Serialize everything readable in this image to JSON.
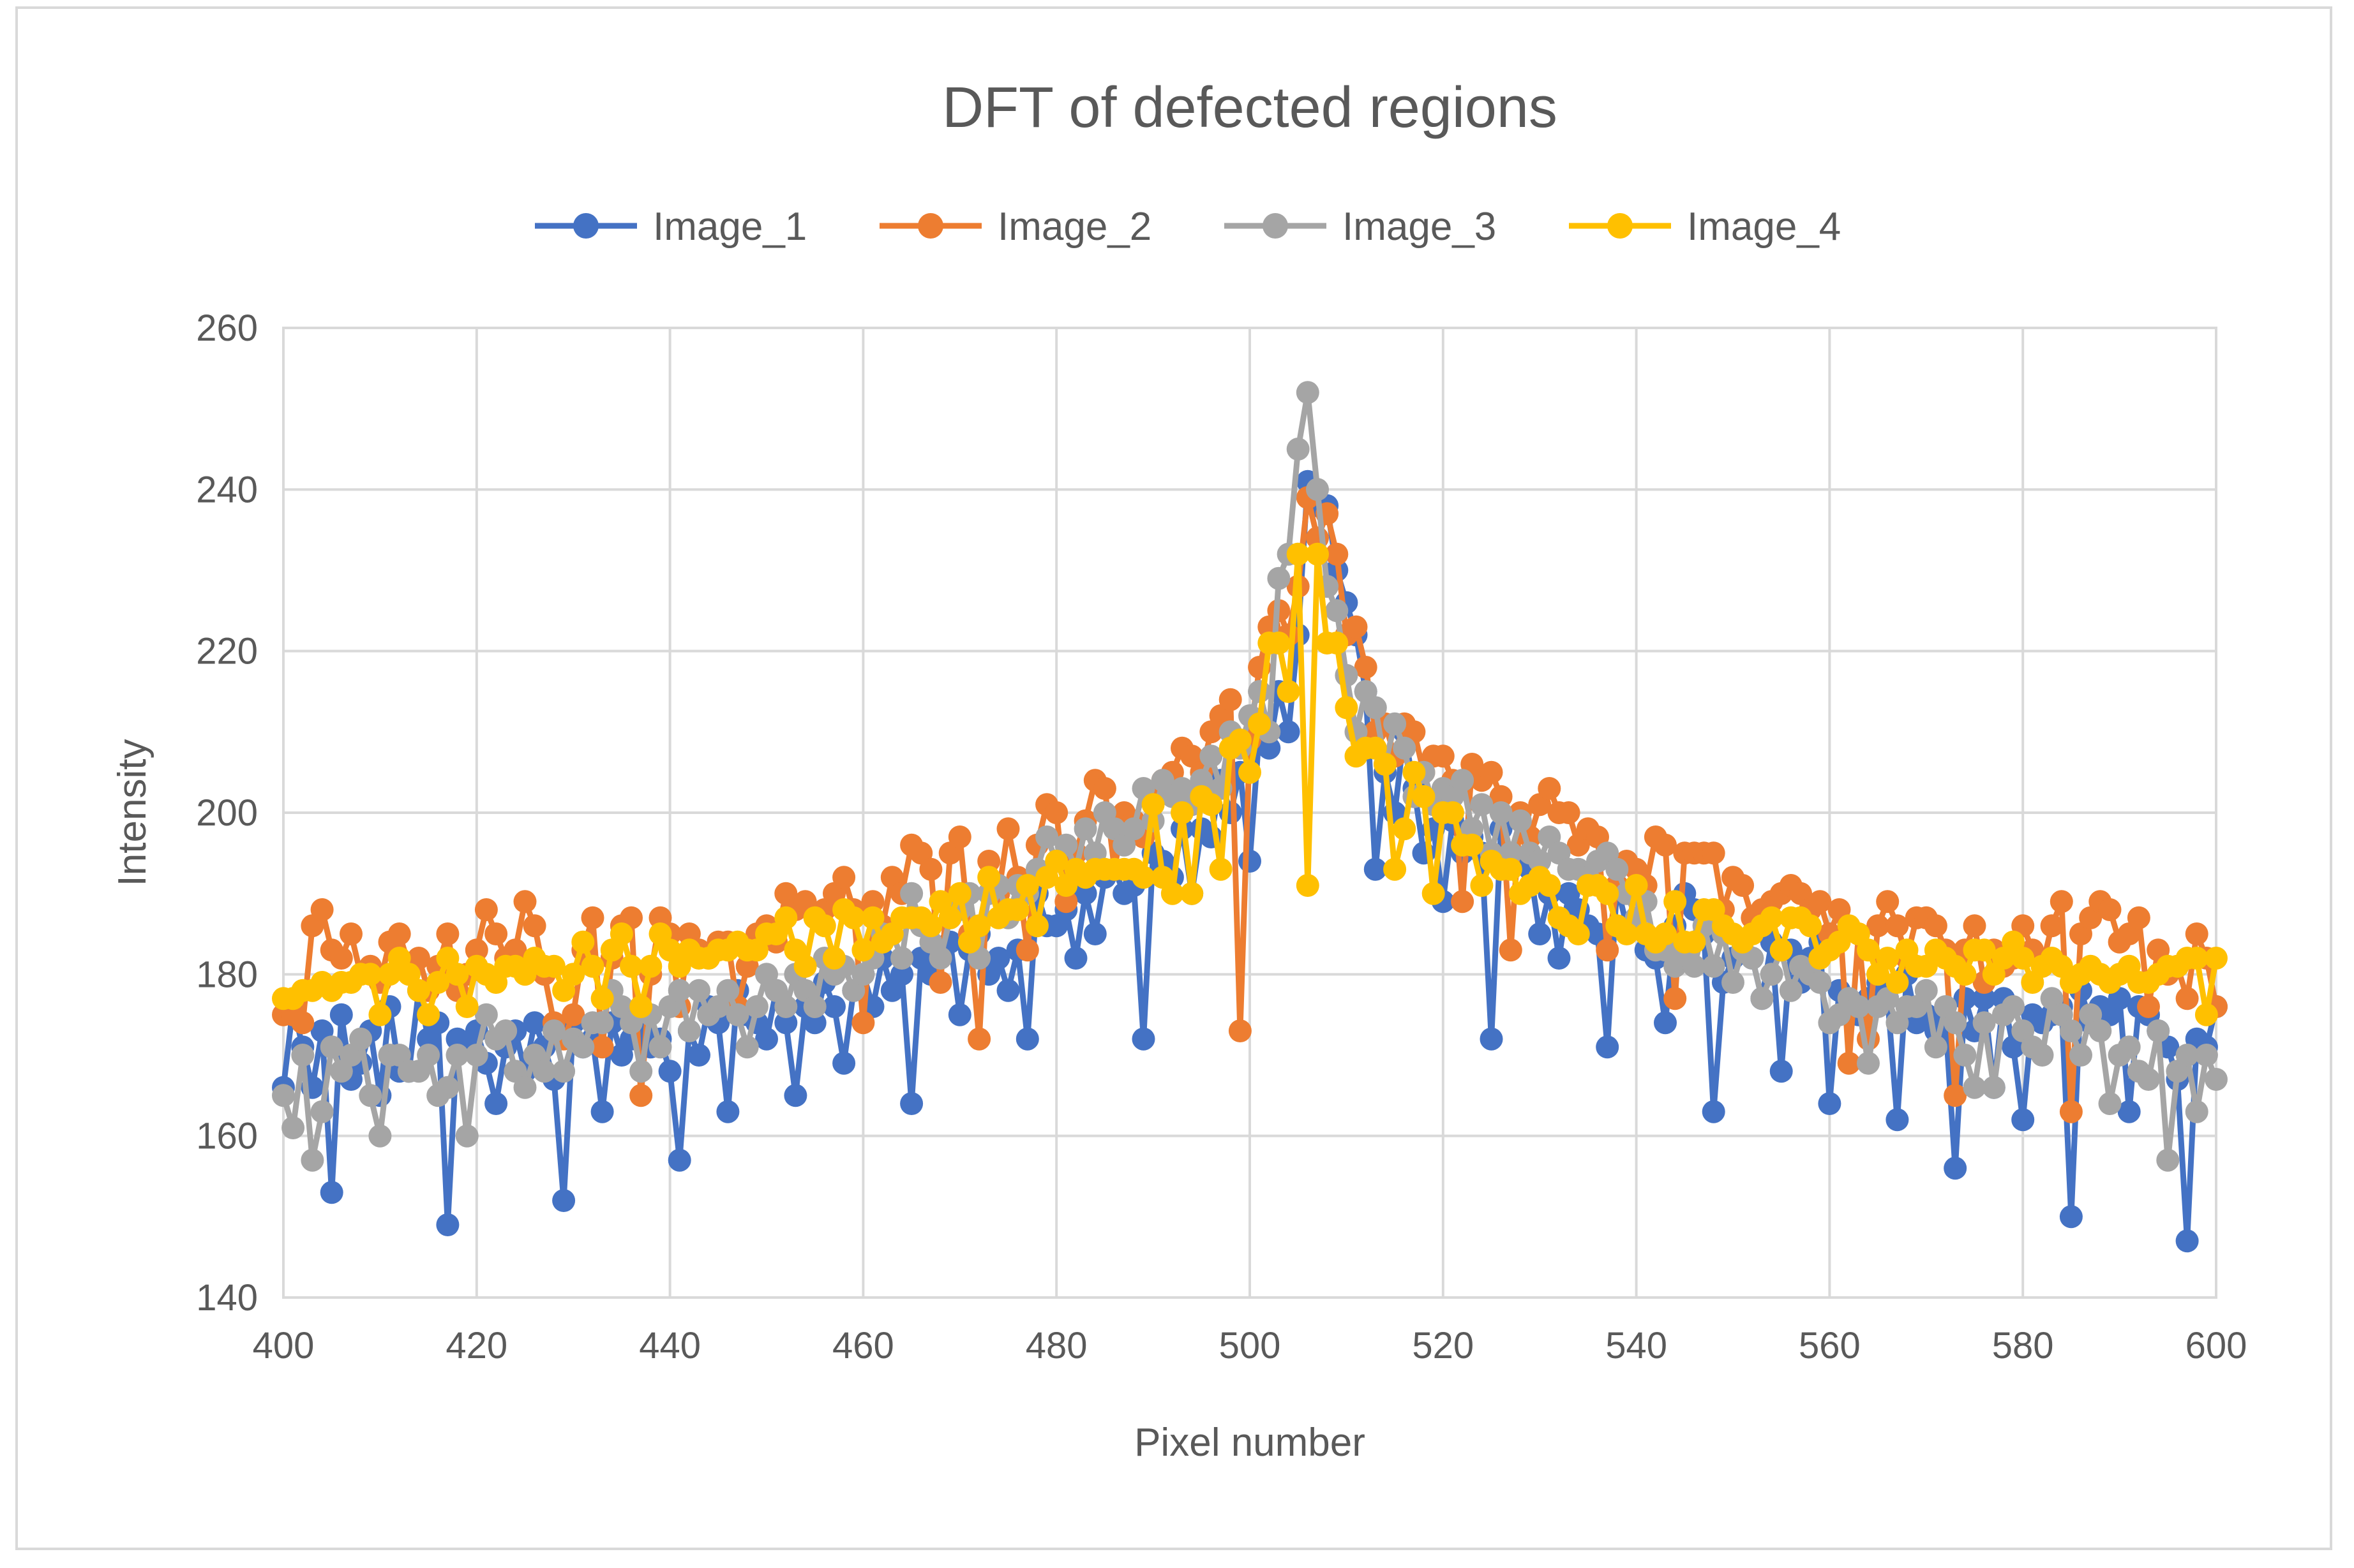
{
  "chart_data": {
    "type": "line",
    "title": "DFT of defected regions",
    "xlabel": "Pixel number",
    "ylabel": "Intensity",
    "xlim": [
      400,
      600
    ],
    "ylim": [
      140,
      260
    ],
    "x_ticks": [
      400,
      420,
      440,
      460,
      480,
      500,
      520,
      540,
      560,
      580,
      600
    ],
    "y_ticks": [
      140,
      160,
      180,
      200,
      220,
      240,
      260
    ],
    "grid": true,
    "legend_position": "top",
    "marker": "circle",
    "x": [
      400,
      401,
      402,
      403,
      404,
      405,
      406,
      407,
      408,
      409,
      410,
      411,
      412,
      413,
      414,
      415,
      416,
      417,
      418,
      419,
      420,
      421,
      422,
      423,
      424,
      425,
      426,
      427,
      428,
      429,
      430,
      431,
      432,
      433,
      434,
      435,
      436,
      437,
      438,
      439,
      440,
      441,
      442,
      443,
      444,
      445,
      446,
      447,
      448,
      449,
      450,
      451,
      452,
      453,
      454,
      455,
      456,
      457,
      458,
      459,
      460,
      461,
      462,
      463,
      464,
      465,
      466,
      467,
      468,
      469,
      470,
      471,
      472,
      473,
      474,
      475,
      476,
      477,
      478,
      479,
      480,
      481,
      482,
      483,
      484,
      485,
      486,
      487,
      488,
      489,
      490,
      491,
      492,
      493,
      494,
      495,
      496,
      497,
      498,
      499,
      500,
      501,
      502,
      503,
      504,
      505,
      506,
      507,
      508,
      509,
      510,
      511,
      512,
      513,
      514,
      515,
      516,
      517,
      518,
      519,
      520,
      521,
      522,
      523,
      524,
      525,
      526,
      527,
      528,
      529,
      530,
      531,
      532,
      533,
      534,
      535,
      536,
      537,
      538,
      539,
      540,
      541,
      542,
      543,
      544,
      545,
      546,
      547,
      548,
      549,
      550,
      551,
      552,
      553,
      554,
      555,
      556,
      557,
      558,
      559,
      560,
      561,
      562,
      563,
      564,
      565,
      566,
      567,
      568,
      569,
      570,
      571,
      572,
      573,
      574,
      575,
      576,
      577,
      578,
      579,
      580,
      581,
      582,
      583,
      584,
      585,
      586,
      587,
      588,
      589,
      590,
      591,
      592,
      593,
      594,
      595,
      596,
      597,
      598,
      599,
      600
    ],
    "series": [
      {
        "name": "Image_1",
        "color": "#4472c4",
        "values": [
          166,
          176,
          171,
          166,
          173,
          153,
          175,
          167,
          169,
          173,
          165,
          176,
          168,
          168,
          178,
          172,
          174,
          149,
          172,
          171,
          173,
          169,
          164,
          171,
          173,
          168,
          174,
          171,
          167,
          152,
          174,
          171,
          172,
          163,
          174,
          170,
          172,
          173,
          171,
          172,
          168,
          157,
          173,
          170,
          176,
          174,
          163,
          178,
          175,
          174,
          172,
          178,
          174,
          165,
          176,
          174,
          179,
          176,
          169,
          178,
          180,
          176,
          182,
          178,
          180,
          164,
          182,
          180,
          183,
          184,
          175,
          183,
          185,
          180,
          182,
          178,
          183,
          172,
          190,
          186,
          186,
          188,
          182,
          190,
          185,
          192,
          193,
          190,
          191,
          172,
          195,
          194,
          192,
          198,
          190,
          198,
          197,
          204,
          200,
          205,
          194,
          210,
          208,
          215,
          210,
          222,
          241,
          238,
          238,
          230,
          226,
          222,
          215,
          193,
          205,
          200,
          210,
          203,
          195,
          198,
          189,
          199,
          195,
          197,
          195,
          172,
          198,
          195,
          194,
          193,
          185,
          190,
          182,
          190,
          188,
          186,
          185,
          171,
          191,
          186,
          187,
          183,
          182,
          174,
          186,
          190,
          188,
          185,
          163,
          179,
          182,
          183,
          182,
          177,
          184,
          168,
          183,
          179,
          182,
          184,
          164,
          178,
          176,
          175,
          177,
          179,
          177,
          162,
          180,
          174,
          175,
          173,
          174,
          156,
          177,
          173,
          177,
          166,
          177,
          171,
          162,
          175,
          174,
          175,
          176,
          150,
          178,
          174,
          176,
          175,
          177,
          163,
          176,
          175,
          173,
          171,
          167,
          147,
          172,
          171,
          176
        ]
      },
      {
        "name": "Image_2",
        "color": "#ed7d31",
        "values": [
          175,
          175,
          174,
          186,
          188,
          183,
          182,
          185,
          180,
          181,
          179,
          184,
          185,
          181,
          182,
          178,
          181,
          185,
          178,
          180,
          183,
          188,
          185,
          182,
          183,
          189,
          186,
          180,
          174,
          172,
          175,
          183,
          187,
          171,
          182,
          186,
          187,
          165,
          180,
          187,
          185,
          176,
          185,
          183,
          182,
          184,
          184,
          176,
          181,
          185,
          186,
          184,
          190,
          188,
          189,
          187,
          188,
          190,
          192,
          188,
          174,
          189,
          186,
          192,
          190,
          196,
          195,
          193,
          179,
          195,
          197,
          185,
          172,
          194,
          190,
          198,
          192,
          183,
          196,
          201,
          200,
          189,
          195,
          199,
          204,
          203,
          193,
          200,
          199,
          197,
          202,
          204,
          205,
          208,
          207,
          205,
          210,
          212,
          214,
          173,
          209,
          218,
          223,
          225,
          222,
          228,
          239,
          234,
          237,
          232,
          222,
          223,
          218,
          210,
          211,
          207,
          211,
          210,
          205,
          207,
          207,
          204,
          189,
          206,
          204,
          205,
          202,
          183,
          200,
          197,
          201,
          203,
          200,
          200,
          196,
          198,
          197,
          183,
          191,
          194,
          193,
          191,
          197,
          196,
          177,
          195,
          195,
          195,
          195,
          188,
          192,
          191,
          187,
          188,
          189,
          190,
          191,
          190,
          188,
          189,
          185,
          188,
          169,
          185,
          172,
          186,
          189,
          186,
          182,
          187,
          187,
          186,
          183,
          165,
          183,
          186,
          179,
          183,
          181,
          182,
          186,
          183,
          181,
          186,
          189,
          163,
          185,
          187,
          189,
          188,
          184,
          185,
          187,
          176,
          183,
          180,
          181,
          177,
          185,
          182,
          176
        ]
      },
      {
        "name": "Image_3",
        "color": "#a5a5a5",
        "values": [
          165,
          161,
          170,
          157,
          163,
          171,
          168,
          170,
          172,
          165,
          160,
          170,
          170,
          168,
          168,
          170,
          165,
          166,
          170,
          160,
          170,
          175,
          172,
          173,
          168,
          166,
          170,
          168,
          173,
          168,
          172,
          171,
          174,
          174,
          178,
          176,
          174,
          168,
          175,
          171,
          176,
          178,
          173,
          178,
          175,
          176,
          178,
          175,
          171,
          176,
          180,
          178,
          176,
          180,
          178,
          176,
          182,
          180,
          181,
          178,
          180,
          182,
          185,
          185,
          182,
          190,
          186,
          184,
          182,
          187,
          188,
          190,
          182,
          190,
          191,
          187,
          191,
          190,
          193,
          197,
          194,
          196,
          193,
          198,
          195,
          200,
          198,
          196,
          198,
          203,
          199,
          204,
          202,
          203,
          201,
          204,
          207,
          203,
          210,
          208,
          212,
          215,
          210,
          229,
          232,
          245,
          252,
          240,
          228,
          225,
          217,
          210,
          215,
          213,
          206,
          211,
          208,
          202,
          205,
          201,
          203,
          202,
          204,
          198,
          201,
          195,
          200,
          195,
          199,
          195,
          194,
          197,
          195,
          193,
          193,
          192,
          194,
          195,
          193,
          190,
          187,
          189,
          183,
          183,
          181,
          182,
          181,
          186,
          181,
          185,
          179,
          183,
          182,
          177,
          180,
          183,
          178,
          181,
          180,
          179,
          174,
          175,
          177,
          176,
          169,
          176,
          177,
          174,
          176,
          176,
          178,
          171,
          176,
          174,
          170,
          166,
          174,
          166,
          175,
          176,
          173,
          171,
          170,
          177,
          175,
          173,
          170,
          175,
          173,
          164,
          170,
          171,
          168,
          167,
          173,
          157,
          168,
          170,
          163,
          170,
          167
        ]
      },
      {
        "name": "Image_4",
        "color": "#ffc000",
        "values": [
          177,
          177,
          178,
          178,
          179,
          178,
          179,
          179,
          180,
          180,
          175,
          180,
          182,
          180,
          178,
          175,
          179,
          182,
          180,
          176,
          181,
          180,
          179,
          181,
          181,
          180,
          182,
          181,
          181,
          178,
          180,
          184,
          181,
          177,
          183,
          185,
          181,
          176,
          181,
          185,
          183,
          181,
          183,
          182,
          182,
          183,
          183,
          184,
          183,
          183,
          185,
          185,
          187,
          183,
          181,
          187,
          186,
          182,
          188,
          187,
          183,
          187,
          184,
          185,
          187,
          187,
          187,
          186,
          189,
          187,
          190,
          184,
          186,
          192,
          187,
          188,
          188,
          191,
          186,
          192,
          194,
          191,
          193,
          192,
          193,
          193,
          193,
          193,
          193,
          192,
          201,
          192,
          190,
          200,
          190,
          202,
          201,
          193,
          208,
          209,
          205,
          211,
          221,
          221,
          215,
          232,
          191,
          232,
          221,
          221,
          213,
          207,
          208,
          208,
          206,
          193,
          198,
          205,
          202,
          190,
          200,
          200,
          196,
          196,
          191,
          194,
          193,
          193,
          190,
          191,
          192,
          191,
          187,
          186,
          185,
          191,
          191,
          190,
          186,
          185,
          191,
          185,
          184,
          185,
          189,
          184,
          184,
          188,
          188,
          186,
          185,
          184,
          185,
          186,
          187,
          183,
          187,
          187,
          186,
          182,
          183,
          184,
          186,
          185,
          183,
          180,
          182,
          179,
          183,
          181,
          181,
          183,
          182,
          181,
          180,
          183,
          183,
          180,
          182,
          184,
          182,
          179,
          181,
          182,
          181,
          179,
          180,
          181,
          180,
          179,
          180,
          181,
          179,
          179,
          180,
          181,
          181,
          182,
          182,
          175,
          182
        ]
      }
    ]
  }
}
